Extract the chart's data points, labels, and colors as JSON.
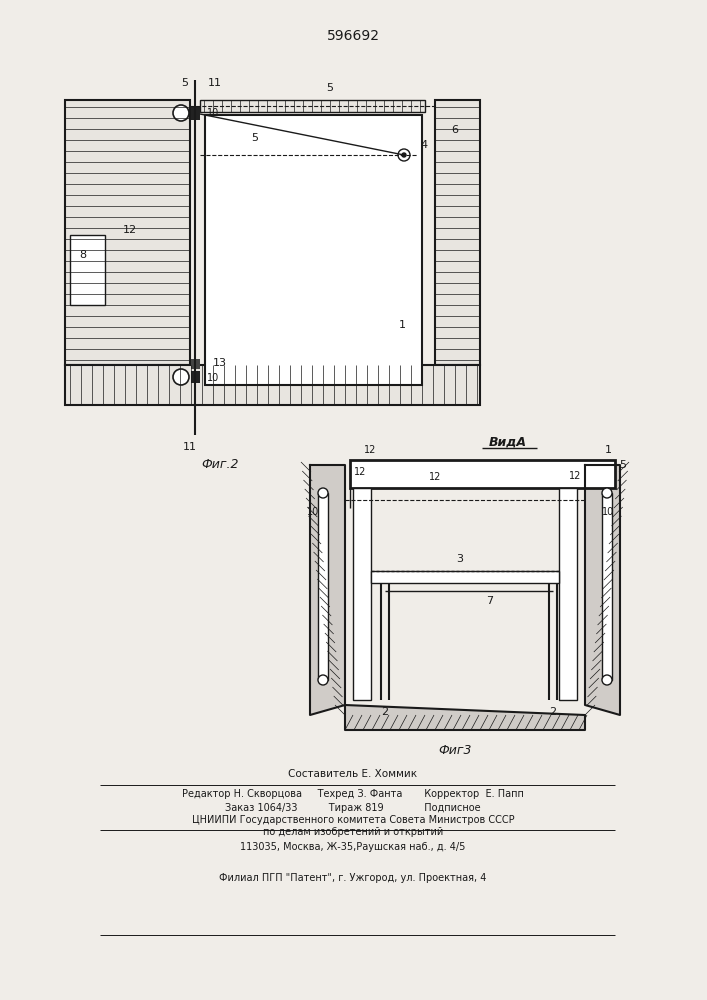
{
  "patent_number": "596692",
  "fig2_caption": "Фиг.2",
  "fig3_caption": "Фиг3",
  "vida_label": "ВидА",
  "bg_color": "#f0ede8",
  "line_color": "#1a1a1a",
  "footer_lines": [
    "Составитель Е. Хоммик",
    "Редактор Н. Скворцова     Техред З. Фанта       Корректор  Е. Папп",
    "Заказ 1064/33          Тираж 819             Подписное",
    "ЦНИИПИ Государственного комитета Совета Министров СССР",
    "по делам изобретений и открытий",
    "113035, Москва, Ж-35,Раушская наб., д. 4/5",
    "Филиал ПГП \"Патент\", г. Ужгород, ул. Проектная, 4"
  ]
}
